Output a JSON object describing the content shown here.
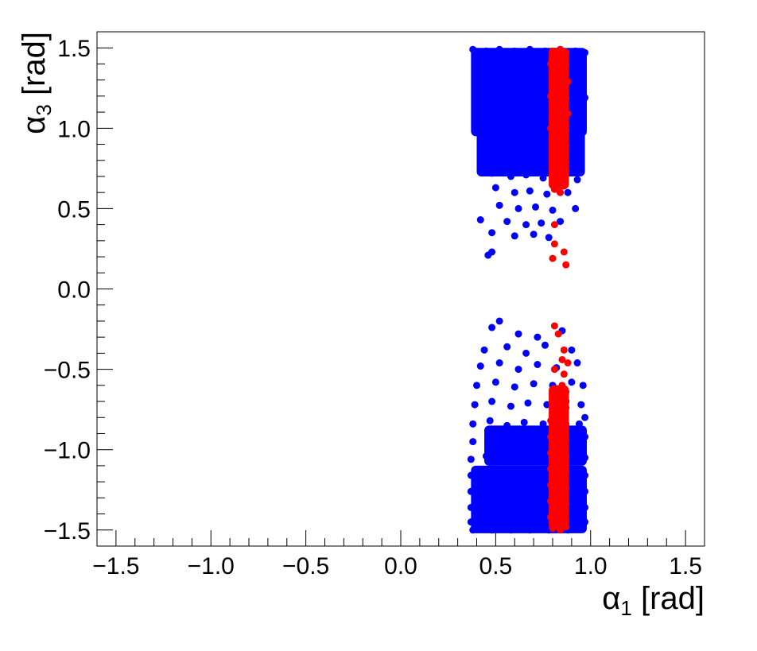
{
  "chart_data": {
    "type": "scatter",
    "xlabel": {
      "symbol": "α",
      "subscript": "1",
      "unit": " [rad]"
    },
    "ylabel": {
      "symbol": "α",
      "subscript": "3",
      "unit": " [rad]"
    },
    "xlim": [
      -1.6,
      1.6
    ],
    "ylim": [
      -1.6,
      1.6
    ],
    "x_ticks": [
      -1.5,
      -1.0,
      -0.5,
      0.0,
      0.5,
      1.0,
      1.5
    ],
    "x_tick_labels": [
      "−1.5",
      "−1.0",
      "−0.5",
      "0.0",
      "0.5",
      "1.0",
      "1.5"
    ],
    "y_ticks": [
      -1.5,
      -1.0,
      -0.5,
      0.0,
      0.5,
      1.0,
      1.5
    ],
    "y_tick_labels": [
      "−1.5",
      "−1.0",
      "−0.5",
      "0.0",
      "0.5",
      "1.0",
      "1.5"
    ],
    "grid": false,
    "series": [
      {
        "color": "#0000ff",
        "points": [
          [
            0.38,
            1.49
          ],
          [
            0.45,
            1.48
          ],
          [
            0.52,
            1.49
          ],
          [
            0.6,
            1.48
          ],
          [
            0.68,
            1.49
          ],
          [
            0.76,
            1.48
          ],
          [
            0.84,
            1.49
          ],
          [
            0.92,
            1.48
          ],
          [
            0.97,
            1.47
          ],
          [
            0.39,
            1.42
          ],
          [
            0.47,
            1.4
          ],
          [
            0.55,
            1.43
          ],
          [
            0.63,
            1.41
          ],
          [
            0.71,
            1.42
          ],
          [
            0.79,
            1.4
          ],
          [
            0.88,
            1.42
          ],
          [
            0.95,
            1.4
          ],
          [
            0.4,
            1.33
          ],
          [
            0.48,
            1.3
          ],
          [
            0.57,
            1.32
          ],
          [
            0.65,
            1.3
          ],
          [
            0.73,
            1.31
          ],
          [
            0.81,
            1.29
          ],
          [
            0.9,
            1.31
          ],
          [
            0.96,
            1.3
          ],
          [
            0.41,
            1.22
          ],
          [
            0.5,
            1.2
          ],
          [
            0.58,
            1.21
          ],
          [
            0.66,
            1.19
          ],
          [
            0.75,
            1.2
          ],
          [
            0.83,
            1.18
          ],
          [
            0.91,
            1.21
          ],
          [
            0.97,
            1.19
          ],
          [
            0.42,
            1.12
          ],
          [
            0.51,
            1.1
          ],
          [
            0.6,
            1.11
          ],
          [
            0.68,
            1.09
          ],
          [
            0.77,
            1.1
          ],
          [
            0.85,
            1.08
          ],
          [
            0.92,
            1.1
          ],
          [
            0.96,
            1.08
          ],
          [
            0.43,
            1.02
          ],
          [
            0.52,
            1.0
          ],
          [
            0.61,
            1.01
          ],
          [
            0.7,
            0.99
          ],
          [
            0.78,
            1.0
          ],
          [
            0.87,
            0.98
          ],
          [
            0.94,
            1.0
          ],
          [
            0.44,
            0.93
          ],
          [
            0.53,
            0.9
          ],
          [
            0.62,
            0.92
          ],
          [
            0.71,
            0.89
          ],
          [
            0.8,
            0.91
          ],
          [
            0.89,
            0.88
          ],
          [
            0.95,
            0.9
          ],
          [
            0.46,
            0.82
          ],
          [
            0.56,
            0.8
          ],
          [
            0.64,
            0.81
          ],
          [
            0.73,
            0.79
          ],
          [
            0.82,
            0.8
          ],
          [
            0.9,
            0.78
          ],
          [
            0.48,
            0.72
          ],
          [
            0.58,
            0.7
          ],
          [
            0.66,
            0.71
          ],
          [
            0.75,
            0.69
          ],
          [
            0.85,
            0.7
          ],
          [
            0.93,
            0.68
          ],
          [
            0.5,
            0.63
          ],
          [
            0.6,
            0.6
          ],
          [
            0.68,
            0.61
          ],
          [
            0.77,
            0.59
          ],
          [
            0.88,
            0.6
          ],
          [
            0.52,
            0.52
          ],
          [
            0.62,
            0.5
          ],
          [
            0.71,
            0.51
          ],
          [
            0.8,
            0.49
          ],
          [
            0.92,
            0.5
          ],
          [
            0.42,
            0.43
          ],
          [
            0.56,
            0.42
          ],
          [
            0.66,
            0.4
          ],
          [
            0.74,
            0.41
          ],
          [
            0.84,
            0.42
          ],
          [
            0.48,
            0.35
          ],
          [
            0.6,
            0.33
          ],
          [
            0.7,
            0.34
          ],
          [
            0.78,
            0.32
          ],
          [
            0.46,
            0.21
          ],
          [
            0.48,
            0.23
          ],
          [
            0.48,
            -0.24
          ],
          [
            0.52,
            -0.2
          ],
          [
            0.62,
            -0.28
          ],
          [
            0.72,
            -0.3
          ],
          [
            0.85,
            -0.26
          ],
          [
            0.44,
            -0.38
          ],
          [
            0.56,
            -0.36
          ],
          [
            0.66,
            -0.4
          ],
          [
            0.76,
            -0.35
          ],
          [
            0.9,
            -0.38
          ],
          [
            0.42,
            -0.48
          ],
          [
            0.52,
            -0.46
          ],
          [
            0.62,
            -0.5
          ],
          [
            0.72,
            -0.47
          ],
          [
            0.82,
            -0.49
          ],
          [
            0.93,
            -0.46
          ],
          [
            0.4,
            -0.6
          ],
          [
            0.5,
            -0.58
          ],
          [
            0.6,
            -0.61
          ],
          [
            0.7,
            -0.59
          ],
          [
            0.8,
            -0.6
          ],
          [
            0.9,
            -0.58
          ],
          [
            0.96,
            -0.6
          ],
          [
            0.39,
            -0.72
          ],
          [
            0.48,
            -0.7
          ],
          [
            0.58,
            -0.73
          ],
          [
            0.67,
            -0.71
          ],
          [
            0.77,
            -0.72
          ],
          [
            0.87,
            -0.7
          ],
          [
            0.95,
            -0.72
          ],
          [
            0.38,
            -0.84
          ],
          [
            0.47,
            -0.82
          ],
          [
            0.56,
            -0.85
          ],
          [
            0.65,
            -0.83
          ],
          [
            0.75,
            -0.84
          ],
          [
            0.85,
            -0.82
          ],
          [
            0.94,
            -0.84
          ],
          [
            0.97,
            -0.8
          ],
          [
            0.38,
            -0.95
          ],
          [
            0.46,
            -0.93
          ],
          [
            0.55,
            -0.96
          ],
          [
            0.64,
            -0.94
          ],
          [
            0.73,
            -0.95
          ],
          [
            0.83,
            -0.93
          ],
          [
            0.92,
            -0.95
          ],
          [
            0.97,
            -0.92
          ],
          [
            0.37,
            -1.06
          ],
          [
            0.45,
            -1.04
          ],
          [
            0.54,
            -1.07
          ],
          [
            0.63,
            -1.05
          ],
          [
            0.72,
            -1.06
          ],
          [
            0.82,
            -1.04
          ],
          [
            0.91,
            -1.06
          ],
          [
            0.97,
            -1.05
          ],
          [
            0.37,
            -1.16
          ],
          [
            0.45,
            -1.15
          ],
          [
            0.53,
            -1.17
          ],
          [
            0.62,
            -1.16
          ],
          [
            0.71,
            -1.17
          ],
          [
            0.81,
            -1.15
          ],
          [
            0.9,
            -1.17
          ],
          [
            0.97,
            -1.16
          ],
          [
            0.37,
            -1.26
          ],
          [
            0.44,
            -1.25
          ],
          [
            0.53,
            -1.27
          ],
          [
            0.61,
            -1.26
          ],
          [
            0.7,
            -1.27
          ],
          [
            0.8,
            -1.25
          ],
          [
            0.89,
            -1.27
          ],
          [
            0.97,
            -1.26
          ],
          [
            0.37,
            -1.36
          ],
          [
            0.44,
            -1.35
          ],
          [
            0.52,
            -1.37
          ],
          [
            0.61,
            -1.36
          ],
          [
            0.7,
            -1.37
          ],
          [
            0.79,
            -1.35
          ],
          [
            0.89,
            -1.37
          ],
          [
            0.97,
            -1.36
          ],
          [
            0.37,
            -1.45
          ],
          [
            0.44,
            -1.44
          ],
          [
            0.52,
            -1.46
          ],
          [
            0.61,
            -1.45
          ],
          [
            0.7,
            -1.46
          ],
          [
            0.79,
            -1.44
          ],
          [
            0.89,
            -1.46
          ],
          [
            0.97,
            -1.45
          ],
          [
            0.38,
            -1.5
          ],
          [
            0.48,
            -1.5
          ],
          [
            0.58,
            -1.5
          ],
          [
            0.68,
            -1.5
          ],
          [
            0.78,
            -1.5
          ],
          [
            0.88,
            -1.5
          ],
          [
            0.96,
            -1.49
          ]
        ]
      },
      {
        "color": "#ff0000",
        "points": [
          [
            0.8,
            1.48
          ],
          [
            0.84,
            1.49
          ],
          [
            0.87,
            1.47
          ],
          [
            0.79,
            1.4
          ],
          [
            0.83,
            1.42
          ],
          [
            0.87,
            1.39
          ],
          [
            0.8,
            1.3
          ],
          [
            0.84,
            1.32
          ],
          [
            0.88,
            1.29
          ],
          [
            0.79,
            1.2
          ],
          [
            0.83,
            1.22
          ],
          [
            0.87,
            1.19
          ],
          [
            0.8,
            1.1
          ],
          [
            0.84,
            1.12
          ],
          [
            0.88,
            1.09
          ],
          [
            0.79,
            1.0
          ],
          [
            0.83,
            1.02
          ],
          [
            0.87,
            0.99
          ],
          [
            0.8,
            0.9
          ],
          [
            0.84,
            0.92
          ],
          [
            0.87,
            0.89
          ],
          [
            0.81,
            0.8
          ],
          [
            0.84,
            0.82
          ],
          [
            0.87,
            0.79
          ],
          [
            0.82,
            0.72
          ],
          [
            0.85,
            0.7
          ],
          [
            0.87,
            0.74
          ],
          [
            0.81,
            0.62
          ],
          [
            0.84,
            0.6
          ],
          [
            0.86,
            0.64
          ],
          [
            0.81,
            0.4
          ],
          [
            0.81,
            0.28
          ],
          [
            0.86,
            0.23
          ],
          [
            0.8,
            0.19
          ],
          [
            0.87,
            0.15
          ],
          [
            0.81,
            -0.23
          ],
          [
            0.83,
            -0.28
          ],
          [
            0.86,
            -0.38
          ],
          [
            0.85,
            -0.44
          ],
          [
            0.88,
            -0.46
          ],
          [
            0.81,
            -0.5
          ],
          [
            0.86,
            -0.53
          ],
          [
            0.82,
            -0.62
          ],
          [
            0.85,
            -0.6
          ],
          [
            0.87,
            -0.64
          ],
          [
            0.8,
            -0.72
          ],
          [
            0.84,
            -0.7
          ],
          [
            0.87,
            -0.74
          ],
          [
            0.79,
            -0.82
          ],
          [
            0.83,
            -0.8
          ],
          [
            0.87,
            -0.84
          ],
          [
            0.79,
            -0.92
          ],
          [
            0.83,
            -0.9
          ],
          [
            0.87,
            -0.94
          ],
          [
            0.79,
            -1.02
          ],
          [
            0.83,
            -1.0
          ],
          [
            0.87,
            -1.04
          ],
          [
            0.79,
            -1.12
          ],
          [
            0.83,
            -1.1
          ],
          [
            0.87,
            -1.14
          ],
          [
            0.79,
            -1.22
          ],
          [
            0.83,
            -1.2
          ],
          [
            0.87,
            -1.24
          ],
          [
            0.79,
            -1.32
          ],
          [
            0.83,
            -1.3
          ],
          [
            0.87,
            -1.34
          ],
          [
            0.79,
            -1.42
          ],
          [
            0.83,
            -1.4
          ],
          [
            0.87,
            -1.44
          ],
          [
            0.8,
            -1.49
          ],
          [
            0.84,
            -1.5
          ],
          [
            0.87,
            -1.48
          ]
        ]
      }
    ],
    "bands": [
      {
        "series": 0,
        "color": "#0000ff",
        "x_range": [
          0.37,
          0.98
        ],
        "y_range": [
          0.95,
          1.5
        ]
      },
      {
        "series": 0,
        "color": "#0000ff",
        "x_range": [
          0.4,
          0.97
        ],
        "y_range": [
          0.7,
          1.0
        ]
      },
      {
        "series": 0,
        "color": "#0000ff",
        "x_range": [
          0.37,
          0.98
        ],
        "y_range": [
          -1.52,
          -1.1
        ]
      },
      {
        "series": 0,
        "color": "#0000ff",
        "x_range": [
          0.44,
          0.98
        ],
        "y_range": [
          -1.1,
          -0.85
        ]
      },
      {
        "series": 1,
        "color": "#ff0000",
        "x_range": [
          0.78,
          0.885
        ],
        "y_range": [
          0.62,
          1.5
        ]
      },
      {
        "series": 1,
        "color": "#ff0000",
        "x_range": [
          0.78,
          0.885
        ],
        "y_range": [
          -1.5,
          -0.6
        ]
      }
    ]
  }
}
